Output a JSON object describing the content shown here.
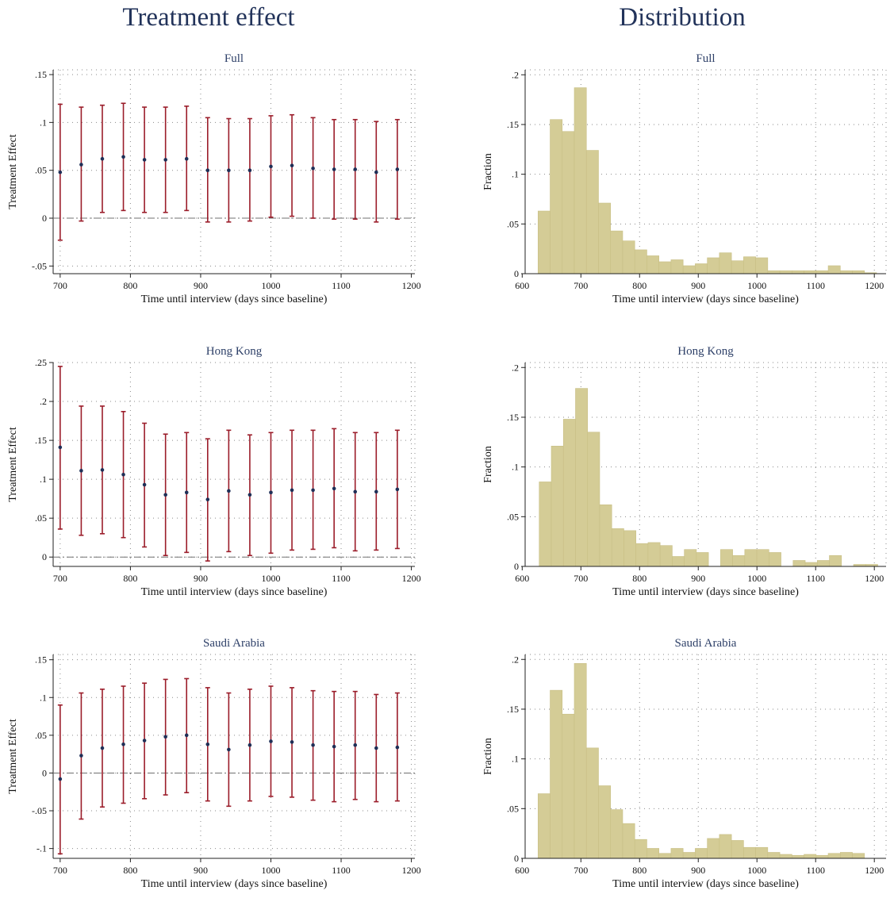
{
  "column_titles": [
    "Treatment effect",
    "Distribution"
  ],
  "chart_data": [
    {
      "type": "scatter",
      "title": "Full",
      "xlabel": "Time until interview (days since baseline)",
      "ylabel": "Treatment Effect",
      "xlim": [
        690,
        1205
      ],
      "ylim": [
        -0.058,
        0.155
      ],
      "xticks": [
        700,
        800,
        900,
        1000,
        1100,
        1200
      ],
      "yticks": [
        -0.05,
        0,
        0.05,
        0.1,
        0.15
      ],
      "ytick_labels": [
        "-.05",
        "0",
        ".05",
        ".1",
        ".15"
      ],
      "grid": true,
      "reference_line": 0,
      "x": [
        700,
        730,
        760,
        790,
        820,
        850,
        880,
        910,
        940,
        970,
        1000,
        1030,
        1060,
        1090,
        1120,
        1150,
        1180
      ],
      "estimate": [
        0.048,
        0.056,
        0.062,
        0.064,
        0.061,
        0.061,
        0.062,
        0.05,
        0.05,
        0.05,
        0.054,
        0.055,
        0.052,
        0.051,
        0.051,
        0.048,
        0.051
      ],
      "ci_low": [
        -0.023,
        -0.003,
        0.006,
        0.008,
        0.006,
        0.006,
        0.008,
        -0.004,
        -0.004,
        -0.003,
        0.001,
        0.002,
        0.0,
        -0.001,
        -0.001,
        -0.004,
        -0.001
      ],
      "ci_high": [
        0.119,
        0.116,
        0.118,
        0.12,
        0.116,
        0.116,
        0.117,
        0.105,
        0.104,
        0.104,
        0.107,
        0.108,
        0.105,
        0.103,
        0.103,
        0.101,
        0.103
      ]
    },
    {
      "type": "bar",
      "title": "Full",
      "xlabel": "Time until interview (days since baseline)",
      "ylabel": "Fraction",
      "xlim": [
        605,
        1220
      ],
      "ylim": [
        0,
        0.205
      ],
      "xticks": [
        600,
        700,
        800,
        900,
        1000,
        1100,
        1200
      ],
      "yticks": [
        0,
        0.05,
        0.1,
        0.15,
        0.2
      ],
      "ytick_labels": [
        "0",
        ".05",
        ".1",
        ".15",
        ".2"
      ],
      "grid": true,
      "bin_start": 627,
      "bin_width": 20.6,
      "values": [
        0.063,
        0.155,
        0.143,
        0.187,
        0.124,
        0.071,
        0.043,
        0.033,
        0.024,
        0.018,
        0.012,
        0.014,
        0.008,
        0.01,
        0.016,
        0.021,
        0.013,
        0.017,
        0.016,
        0.003,
        0.003,
        0.003,
        0.003,
        0.003,
        0.008,
        0.003,
        0.003,
        0.001
      ]
    },
    {
      "type": "scatter",
      "title": "Hong Kong",
      "xlabel": "Time until interview (days since baseline)",
      "ylabel": "Treatment Effect",
      "xlim": [
        690,
        1205
      ],
      "ylim": [
        -0.012,
        0.25
      ],
      "xticks": [
        700,
        800,
        900,
        1000,
        1100,
        1200
      ],
      "yticks": [
        0,
        0.05,
        0.1,
        0.15,
        0.2,
        0.25
      ],
      "ytick_labels": [
        "0",
        ".05",
        ".1",
        ".15",
        ".2",
        ".25"
      ],
      "grid": true,
      "reference_line": 0,
      "x": [
        700,
        730,
        760,
        790,
        820,
        850,
        880,
        910,
        940,
        970,
        1000,
        1030,
        1060,
        1090,
        1120,
        1150,
        1180
      ],
      "estimate": [
        0.141,
        0.111,
        0.112,
        0.106,
        0.093,
        0.08,
        0.083,
        0.074,
        0.085,
        0.08,
        0.083,
        0.086,
        0.086,
        0.088,
        0.084,
        0.084,
        0.087
      ],
      "ci_low": [
        0.036,
        0.028,
        0.03,
        0.025,
        0.013,
        0.002,
        0.006,
        -0.005,
        0.007,
        0.002,
        0.005,
        0.009,
        0.01,
        0.012,
        0.008,
        0.009,
        0.011
      ],
      "ci_high": [
        0.245,
        0.194,
        0.194,
        0.187,
        0.172,
        0.158,
        0.16,
        0.152,
        0.163,
        0.157,
        0.16,
        0.163,
        0.163,
        0.165,
        0.16,
        0.16,
        0.163
      ]
    },
    {
      "type": "bar",
      "title": "Hong Kong",
      "xlabel": "Time until interview (days since baseline)",
      "ylabel": "Fraction",
      "xlim": [
        605,
        1220
      ],
      "ylim": [
        0,
        0.205
      ],
      "xticks": [
        600,
        700,
        800,
        900,
        1000,
        1100,
        1200
      ],
      "yticks": [
        0,
        0.05,
        0.1,
        0.15,
        0.2
      ],
      "ytick_labels": [
        "0",
        ".05",
        ".1",
        ".15",
        ".2"
      ],
      "grid": true,
      "bin_start": 629,
      "bin_width": 20.6,
      "values": [
        0.085,
        0.121,
        0.148,
        0.179,
        0.135,
        0.062,
        0.038,
        0.036,
        0.023,
        0.024,
        0.021,
        0.01,
        0.017,
        0.014,
        0.0,
        0.017,
        0.011,
        0.017,
        0.017,
        0.014,
        0.0,
        0.006,
        0.004,
        0.006,
        0.011,
        0.0,
        0.002,
        0.002
      ]
    },
    {
      "type": "scatter",
      "title": "Saudi Arabia",
      "xlabel": "Time until interview (days since baseline)",
      "ylabel": "Treatment Effect",
      "xlim": [
        690,
        1205
      ],
      "ylim": [
        -0.113,
        0.157
      ],
      "xticks": [
        700,
        800,
        900,
        1000,
        1100,
        1200
      ],
      "yticks": [
        -0.1,
        -0.05,
        0,
        0.05,
        0.1,
        0.15
      ],
      "ytick_labels": [
        "-.1",
        "-.05",
        "0",
        ".05",
        ".1",
        ".15"
      ],
      "grid": true,
      "reference_line": 0,
      "x": [
        700,
        730,
        760,
        790,
        820,
        850,
        880,
        910,
        940,
        970,
        1000,
        1030,
        1060,
        1090,
        1120,
        1150,
        1180
      ],
      "estimate": [
        -0.008,
        0.023,
        0.033,
        0.038,
        0.043,
        0.048,
        0.05,
        0.038,
        0.031,
        0.037,
        0.042,
        0.041,
        0.037,
        0.035,
        0.037,
        0.033,
        0.034
      ],
      "ci_low": [
        -0.107,
        -0.061,
        -0.045,
        -0.04,
        -0.034,
        -0.029,
        -0.026,
        -0.037,
        -0.044,
        -0.037,
        -0.031,
        -0.032,
        -0.036,
        -0.038,
        -0.035,
        -0.038,
        -0.037
      ],
      "ci_high": [
        0.09,
        0.106,
        0.111,
        0.115,
        0.119,
        0.124,
        0.125,
        0.113,
        0.106,
        0.111,
        0.115,
        0.113,
        0.109,
        0.108,
        0.108,
        0.104,
        0.106
      ]
    },
    {
      "type": "bar",
      "title": "Saudi Arabia",
      "xlabel": "Time until interview (days since baseline)",
      "ylabel": "Fraction",
      "xlim": [
        605,
        1220
      ],
      "ylim": [
        0,
        0.205
      ],
      "xticks": [
        600,
        700,
        800,
        900,
        1000,
        1100,
        1200
      ],
      "yticks": [
        0,
        0.05,
        0.1,
        0.15,
        0.2
      ],
      "ytick_labels": [
        "0",
        ".05",
        ".1",
        ".15",
        ".2"
      ],
      "grid": true,
      "bin_start": 627,
      "bin_width": 20.6,
      "values": [
        0.065,
        0.169,
        0.145,
        0.196,
        0.111,
        0.073,
        0.049,
        0.035,
        0.019,
        0.01,
        0.005,
        0.01,
        0.006,
        0.01,
        0.02,
        0.024,
        0.018,
        0.011,
        0.011,
        0.006,
        0.004,
        0.003,
        0.004,
        0.003,
        0.005,
        0.006,
        0.005,
        0.0
      ]
    }
  ],
  "colors": {
    "error_bar": "#9b1d2a",
    "point": "#1f2f57",
    "bar_fill": "#d4cc96",
    "bar_edge": "#c8bf85",
    "grid": "#8a8a8a",
    "reference_line": "#707070",
    "title": "#2e4068"
  }
}
